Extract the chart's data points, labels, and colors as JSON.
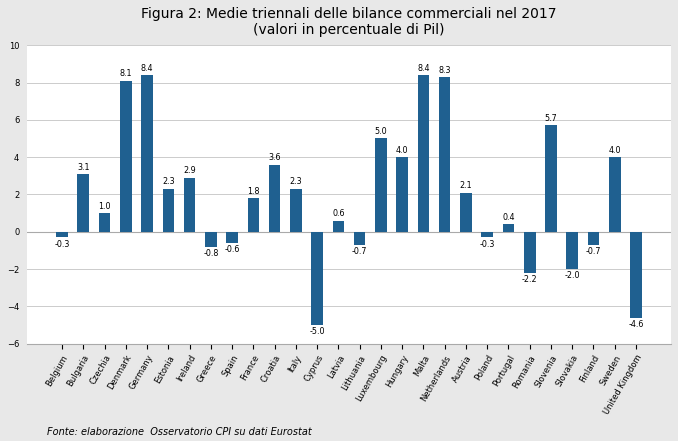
{
  "title_line1": "Figura 2: Medie triennali delle bilance commerciali nel 2017",
  "title_line2": "(valori in percentuale di Pil)",
  "categories": [
    "Belgium",
    "Bulgaria",
    "Czechia",
    "Denmark",
    "Germany",
    "Estonia",
    "Ireland",
    "Greece",
    "Spain",
    "France",
    "Croatia",
    "Italy",
    "Cyprus",
    "Latvia",
    "Lithuania",
    "Luxembourg",
    "Hungary",
    "Malta",
    "Netherlands",
    "Austria",
    "Poland",
    "Portugal",
    "Romania",
    "Slovenia",
    "Slovakia",
    "Finland",
    "Sweden",
    "United Kingdom"
  ],
  "values": [
    -0.3,
    3.1,
    1.0,
    8.1,
    8.4,
    2.3,
    2.9,
    -0.8,
    -0.6,
    1.8,
    3.6,
    2.3,
    -5.0,
    0.6,
    -0.7,
    5.0,
    4.0,
    8.4,
    8.3,
    2.1,
    -0.3,
    0.4,
    -2.2,
    5.7,
    -2.0,
    -0.7,
    4.0,
    -4.6
  ],
  "labels": [
    "-0.3",
    "3.1",
    "1.0",
    "8.1",
    "8.4",
    "2.3",
    "2.9",
    "-0.8",
    "-0.6",
    "1.8",
    "3.6",
    "2.3",
    "-5.0",
    "0.6",
    "-0.7",
    "5.0",
    "4.0",
    "8.4",
    "8.3",
    "2.1",
    "-0.3",
    "0.4",
    "-2.2",
    "5.7",
    "-2.0",
    "-0.7",
    "4.0",
    "-4.6"
  ],
  "bar_color": "#1f6090",
  "ylim": [
    -6,
    10
  ],
  "yticks": [
    -6,
    -4,
    -2,
    0,
    2,
    4,
    6,
    8,
    10
  ],
  "fonte": "Fonte: elaborazione  Osservatorio CPI su dati Eurostat",
  "background_color": "#ffffff",
  "outer_bg": "#e8e8e8",
  "grid_color": "#cccccc",
  "label_fontsize": 5.8,
  "title_fontsize": 10,
  "tick_fontsize": 6.0,
  "fonte_fontsize": 7.0,
  "bar_width": 0.55
}
